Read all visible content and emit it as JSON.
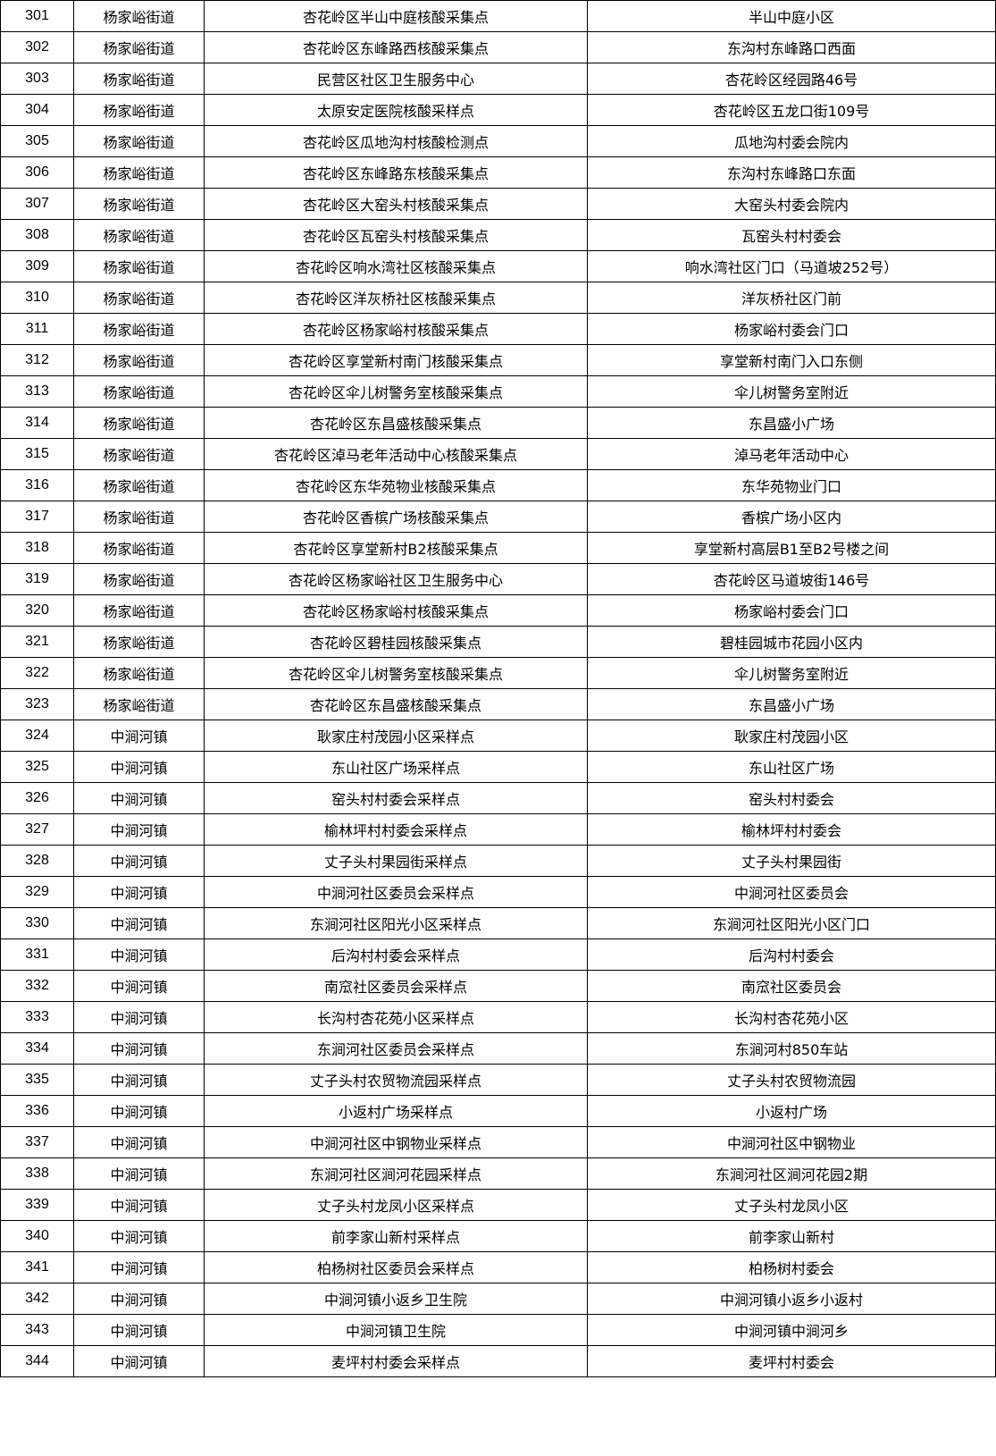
{
  "rows": [
    [
      "301",
      "杨家峪街道",
      "杏花岭区半山中庭核酸采集点",
      "半山中庭小区"
    ],
    [
      "302",
      "杨家峪街道",
      "杏花岭区东峰路西核酸采集点",
      "东沟村东峰路口西面"
    ],
    [
      "303",
      "杨家峪街道",
      "民营区社区卫生服务中心",
      "杏花岭区经园路46号"
    ],
    [
      "304",
      "杨家峪街道",
      "太原安定医院核酸采样点",
      "杏花岭区五龙口街109号"
    ],
    [
      "305",
      "杨家峪街道",
      "杏花岭区瓜地沟村核酸检测点",
      "瓜地沟村委会院内"
    ],
    [
      "306",
      "杨家峪街道",
      "杏花岭区东峰路东核酸采集点",
      "东沟村东峰路口东面"
    ],
    [
      "307",
      "杨家峪街道",
      "杏花岭区大窑头村核酸采集点",
      "大窑头村委会院内"
    ],
    [
      "308",
      "杨家峪街道",
      "杏花岭区瓦窑头村核酸采集点",
      "瓦窑头村村委会"
    ],
    [
      "309",
      "杨家峪街道",
      "杏花岭区响水湾社区核酸采集点",
      "响水湾社区门口（马道坡252号）"
    ],
    [
      "310",
      "杨家峪街道",
      "杏花岭区洋灰桥社区核酸采集点",
      "洋灰桥社区门前"
    ],
    [
      "311",
      "杨家峪街道",
      "杏花岭区杨家峪村核酸采集点",
      "杨家峪村委会门口"
    ],
    [
      "312",
      "杨家峪街道",
      "杏花岭区享堂新村南门核酸采集点",
      "享堂新村南门入口东侧"
    ],
    [
      "313",
      "杨家峪街道",
      "杏花岭区伞儿树警务室核酸采集点",
      "伞儿树警务室附近"
    ],
    [
      "314",
      "杨家峪街道",
      "杏花岭区东昌盛核酸采集点",
      "东昌盛小广场"
    ],
    [
      "315",
      "杨家峪街道",
      "杏花岭区淖马老年活动中心核酸采集点",
      "淖马老年活动中心"
    ],
    [
      "316",
      "杨家峪街道",
      "杏花岭区东华苑物业核酸采集点",
      "东华苑物业门口"
    ],
    [
      "317",
      "杨家峪街道",
      "杏花岭区香槟广场核酸采集点",
      "香槟广场小区内"
    ],
    [
      "318",
      "杨家峪街道",
      "杏花岭区享堂新村B2核酸采集点",
      "享堂新村高层B1至B2号楼之间"
    ],
    [
      "319",
      "杨家峪街道",
      "杏花岭区杨家峪社区卫生服务中心",
      "杏花岭区马道坡街146号"
    ],
    [
      "320",
      "杨家峪街道",
      "杏花岭区杨家峪村核酸采集点",
      "杨家峪村委会门口"
    ],
    [
      "321",
      "杨家峪街道",
      "杏花岭区碧桂园核酸采集点",
      "碧桂园城市花园小区内"
    ],
    [
      "322",
      "杨家峪街道",
      "杏花岭区伞儿树警务室核酸采集点",
      "伞儿树警务室附近"
    ],
    [
      "323",
      "杨家峪街道",
      "杏花岭区东昌盛核酸采集点",
      "东昌盛小广场"
    ],
    [
      "324",
      "中涧河镇",
      "耿家庄村茂园小区采样点",
      "耿家庄村茂园小区"
    ],
    [
      "325",
      "中涧河镇",
      "东山社区广场采样点",
      "东山社区广场"
    ],
    [
      "326",
      "中涧河镇",
      "窑头村村委会采样点",
      "窑头村村委会"
    ],
    [
      "327",
      "中涧河镇",
      "榆林坪村村委会采样点",
      "榆林坪村村委会"
    ],
    [
      "328",
      "中涧河镇",
      "丈子头村果园街采样点",
      "丈子头村果园街"
    ],
    [
      "329",
      "中涧河镇",
      "中涧河社区委员会采样点",
      "中涧河社区委员会"
    ],
    [
      "330",
      "中涧河镇",
      "东涧河社区阳光小区采样点",
      "东涧河社区阳光小区门口"
    ],
    [
      "331",
      "中涧河镇",
      "后沟村村委会采样点",
      "后沟村村委会"
    ],
    [
      "332",
      "中涧河镇",
      "南窊社区委员会采样点",
      "南窊社区委员会"
    ],
    [
      "333",
      "中涧河镇",
      "长沟村杏花苑小区采样点",
      "长沟村杏花苑小区"
    ],
    [
      "334",
      "中涧河镇",
      "东涧河社区委员会采样点",
      "东涧河村850车站"
    ],
    [
      "335",
      "中涧河镇",
      "丈子头村农贸物流园采样点",
      "丈子头村农贸物流园"
    ],
    [
      "336",
      "中涧河镇",
      "小返村广场采样点",
      "小返村广场"
    ],
    [
      "337",
      "中涧河镇",
      "中涧河社区中钢物业采样点",
      "中涧河社区中钢物业"
    ],
    [
      "338",
      "中涧河镇",
      "东涧河社区涧河花园采样点",
      "东涧河社区涧河花园2期"
    ],
    [
      "339",
      "中涧河镇",
      "丈子头村龙凤小区采样点",
      "丈子头村龙凤小区"
    ],
    [
      "340",
      "中涧河镇",
      "前李家山新村采样点",
      "前李家山新村"
    ],
    [
      "341",
      "中涧河镇",
      "柏杨树社区委员会采样点",
      "柏杨树村委会"
    ],
    [
      "342",
      "中涧河镇",
      "中涧河镇小返乡卫生院",
      "中涧河镇小返乡小返村"
    ],
    [
      "343",
      "中涧河镇",
      "中涧河镇卫生院",
      "中涧河镇中涧河乡"
    ],
    [
      "344",
      "中涧河镇",
      "麦坪村村委会采样点",
      "麦坪村村委会"
    ]
  ]
}
